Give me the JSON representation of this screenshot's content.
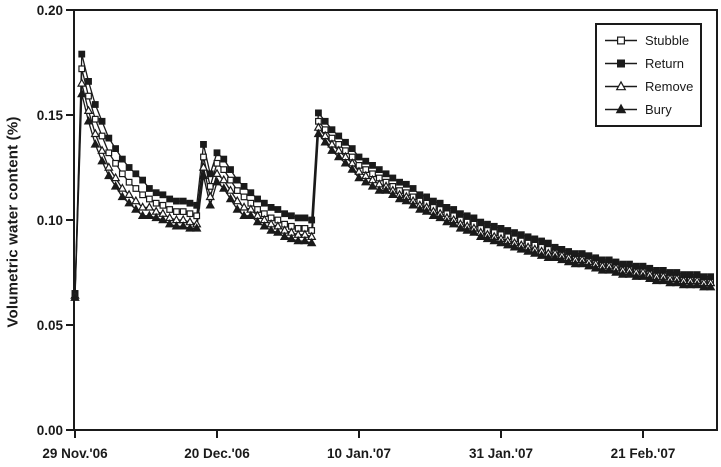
{
  "figure": {
    "background": "#ffffff",
    "ink_color": "#1a1a1a"
  },
  "chart_data": {
    "type": "line",
    "title": "",
    "xlabel": "",
    "ylabel": "Volumetric water content (%)",
    "ylim": [
      0,
      0.2
    ],
    "ytick_values": [
      0.0,
      0.05,
      0.1,
      0.15,
      0.2
    ],
    "ytick_labels": [
      "0.00",
      "0.05",
      "0.10",
      "0.15",
      "0.20"
    ],
    "xtick_labels": [
      "29 Nov.'06",
      "20 Dec.'06",
      "10 Jan.'07",
      "31 Jan.'07",
      "21 Feb.'07"
    ],
    "xtick_days": [
      0,
      21,
      42,
      63,
      84
    ],
    "x_unit": "days since 29 Nov 2006 (one sample per day)",
    "x_days": [
      0,
      1,
      2,
      3,
      4,
      5,
      6,
      7,
      8,
      9,
      10,
      11,
      12,
      13,
      14,
      15,
      16,
      17,
      18,
      19,
      20,
      21,
      22,
      23,
      24,
      25,
      26,
      27,
      28,
      29,
      30,
      31,
      32,
      33,
      34,
      35,
      36,
      37,
      38,
      39,
      40,
      41,
      42,
      43,
      44,
      45,
      46,
      47,
      48,
      49,
      50,
      51,
      52,
      53,
      54,
      55,
      56,
      57,
      58,
      59,
      60,
      61,
      62,
      63,
      64,
      65,
      66,
      67,
      68,
      69,
      70,
      71,
      72,
      73,
      74,
      75,
      76,
      77,
      78,
      79,
      80,
      81,
      82,
      83,
      84,
      85,
      86,
      87,
      88,
      89,
      90,
      91,
      92,
      93,
      94
    ],
    "grid": false,
    "legend_position": "top-right-inside",
    "axis_color": "#1a1a1a",
    "series": [
      {
        "name": "Stubble",
        "marker": "open-square",
        "color": "#1a1a1a",
        "values": [
          0.065,
          0.172,
          0.159,
          0.148,
          0.14,
          0.132,
          0.127,
          0.122,
          0.118,
          0.115,
          0.112,
          0.11,
          0.108,
          0.107,
          0.105,
          0.104,
          0.104,
          0.103,
          0.102,
          0.13,
          0.116,
          0.127,
          0.124,
          0.119,
          0.114,
          0.111,
          0.108,
          0.105,
          0.103,
          0.101,
          0.1,
          0.098,
          0.097,
          0.096,
          0.096,
          0.095,
          0.147,
          0.143,
          0.139,
          0.136,
          0.133,
          0.13,
          0.126,
          0.124,
          0.122,
          0.12,
          0.118,
          0.116,
          0.114,
          0.113,
          0.111,
          0.109,
          0.108,
          0.106,
          0.105,
          0.103,
          0.102,
          0.1,
          0.099,
          0.098,
          0.096,
          0.095,
          0.094,
          0.093,
          0.092,
          0.091,
          0.09,
          0.089,
          0.088,
          0.087,
          0.086,
          0.085,
          0.084,
          0.083,
          0.082,
          0.082,
          0.081,
          0.08,
          0.079,
          0.079,
          0.078,
          0.077,
          0.077,
          0.076,
          0.076,
          0.075,
          0.074,
          0.074,
          0.073,
          0.073,
          0.072,
          0.072,
          0.072,
          0.071,
          0.071
        ]
      },
      {
        "name": "Return",
        "marker": "filled-square",
        "color": "#1a1a1a",
        "values": [
          0.065,
          0.179,
          0.166,
          0.155,
          0.147,
          0.139,
          0.134,
          0.129,
          0.125,
          0.122,
          0.119,
          0.115,
          0.113,
          0.112,
          0.11,
          0.109,
          0.109,
          0.108,
          0.107,
          0.136,
          0.122,
          0.132,
          0.129,
          0.124,
          0.119,
          0.116,
          0.113,
          0.11,
          0.108,
          0.106,
          0.105,
          0.103,
          0.102,
          0.101,
          0.101,
          0.1,
          0.151,
          0.147,
          0.143,
          0.14,
          0.137,
          0.134,
          0.13,
          0.128,
          0.126,
          0.124,
          0.122,
          0.12,
          0.118,
          0.117,
          0.115,
          0.112,
          0.111,
          0.109,
          0.108,
          0.106,
          0.105,
          0.103,
          0.102,
          0.101,
          0.099,
          0.098,
          0.097,
          0.096,
          0.095,
          0.094,
          0.093,
          0.092,
          0.091,
          0.09,
          0.089,
          0.087,
          0.086,
          0.085,
          0.084,
          0.084,
          0.083,
          0.082,
          0.081,
          0.081,
          0.08,
          0.079,
          0.079,
          0.078,
          0.078,
          0.077,
          0.076,
          0.076,
          0.075,
          0.075,
          0.074,
          0.074,
          0.074,
          0.073,
          0.073
        ]
      },
      {
        "name": "Remove",
        "marker": "open-triangle",
        "color": "#1a1a1a",
        "values": [
          0.064,
          0.165,
          0.152,
          0.141,
          0.133,
          0.125,
          0.12,
          0.115,
          0.112,
          0.109,
          0.106,
          0.106,
          0.104,
          0.103,
          0.101,
          0.1,
          0.1,
          0.099,
          0.098,
          0.125,
          0.111,
          0.122,
          0.119,
          0.114,
          0.109,
          0.106,
          0.105,
          0.102,
          0.1,
          0.098,
          0.097,
          0.095,
          0.094,
          0.093,
          0.093,
          0.092,
          0.144,
          0.14,
          0.136,
          0.133,
          0.13,
          0.127,
          0.123,
          0.121,
          0.119,
          0.117,
          0.116,
          0.114,
          0.112,
          0.111,
          0.109,
          0.107,
          0.106,
          0.104,
          0.103,
          0.101,
          0.1,
          0.098,
          0.097,
          0.096,
          0.094,
          0.093,
          0.092,
          0.091,
          0.09,
          0.089,
          0.088,
          0.087,
          0.086,
          0.085,
          0.084,
          0.084,
          0.083,
          0.082,
          0.081,
          0.081,
          0.08,
          0.079,
          0.078,
          0.078,
          0.077,
          0.076,
          0.076,
          0.075,
          0.075,
          0.074,
          0.073,
          0.073,
          0.072,
          0.072,
          0.071,
          0.071,
          0.071,
          0.07,
          0.07
        ]
      },
      {
        "name": "Bury",
        "marker": "filled-triangle",
        "color": "#1a1a1a",
        "values": [
          0.063,
          0.16,
          0.147,
          0.136,
          0.128,
          0.121,
          0.116,
          0.111,
          0.108,
          0.105,
          0.102,
          0.102,
          0.101,
          0.1,
          0.098,
          0.097,
          0.097,
          0.096,
          0.096,
          0.121,
          0.107,
          0.118,
          0.115,
          0.11,
          0.105,
          0.102,
          0.102,
          0.099,
          0.097,
          0.095,
          0.094,
          0.092,
          0.091,
          0.09,
          0.09,
          0.089,
          0.141,
          0.137,
          0.133,
          0.13,
          0.127,
          0.124,
          0.12,
          0.118,
          0.116,
          0.114,
          0.114,
          0.112,
          0.11,
          0.109,
          0.107,
          0.105,
          0.104,
          0.102,
          0.101,
          0.099,
          0.098,
          0.096,
          0.095,
          0.094,
          0.092,
          0.091,
          0.09,
          0.089,
          0.088,
          0.087,
          0.086,
          0.085,
          0.084,
          0.083,
          0.082,
          0.082,
          0.081,
          0.08,
          0.079,
          0.079,
          0.078,
          0.077,
          0.076,
          0.076,
          0.075,
          0.074,
          0.074,
          0.073,
          0.073,
          0.072,
          0.071,
          0.071,
          0.07,
          0.07,
          0.069,
          0.069,
          0.069,
          0.068,
          0.068
        ]
      }
    ]
  }
}
